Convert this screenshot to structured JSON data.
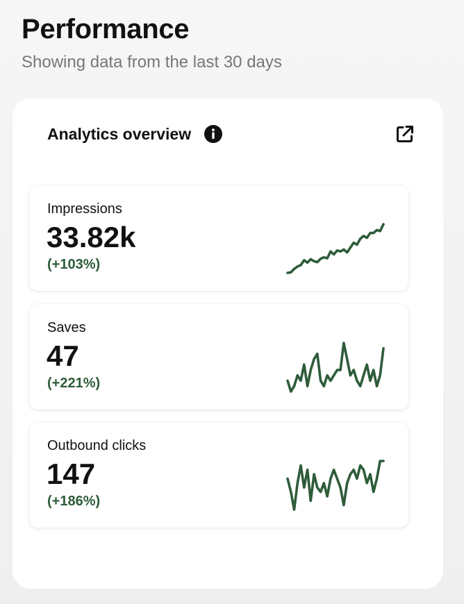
{
  "header": {
    "title": "Performance",
    "subtitle": "Showing data from the last 30 days"
  },
  "card": {
    "title": "Analytics overview",
    "info_icon": "info-icon",
    "open_icon": "external-link-icon"
  },
  "colors": {
    "accent_green": "#2e5c3a",
    "subtitle_gray": "#777777"
  },
  "metrics": [
    {
      "label": "Impressions",
      "value": "33.82k",
      "change": "(+103%)",
      "trend": [
        3,
        3.5,
        7,
        9.5,
        11,
        16,
        13.5,
        17,
        15,
        14,
        17.5,
        19,
        18,
        25,
        22,
        26,
        25,
        27,
        24,
        29,
        34,
        32,
        38,
        41,
        39,
        44,
        44,
        47,
        46,
        53
      ]
    },
    {
      "label": "Saves",
      "value": "47",
      "change": "(+221%)",
      "trend": [
        2,
        0,
        1,
        3,
        2,
        5,
        1,
        4,
        6,
        7,
        2,
        1,
        3,
        2,
        3,
        4,
        4,
        9,
        6,
        3,
        4,
        2,
        1,
        3,
        5,
        2,
        4,
        1,
        3,
        8
      ]
    },
    {
      "label": "Outbound clicks",
      "value": "147",
      "change": "(+186%)",
      "trend": [
        8,
        5,
        1,
        7,
        11,
        6,
        10,
        3,
        9,
        6,
        5,
        7,
        4,
        8,
        10,
        8,
        6,
        2,
        7,
        9,
        10,
        8,
        11,
        10,
        7,
        9,
        5,
        8,
        12,
        12
      ]
    }
  ]
}
